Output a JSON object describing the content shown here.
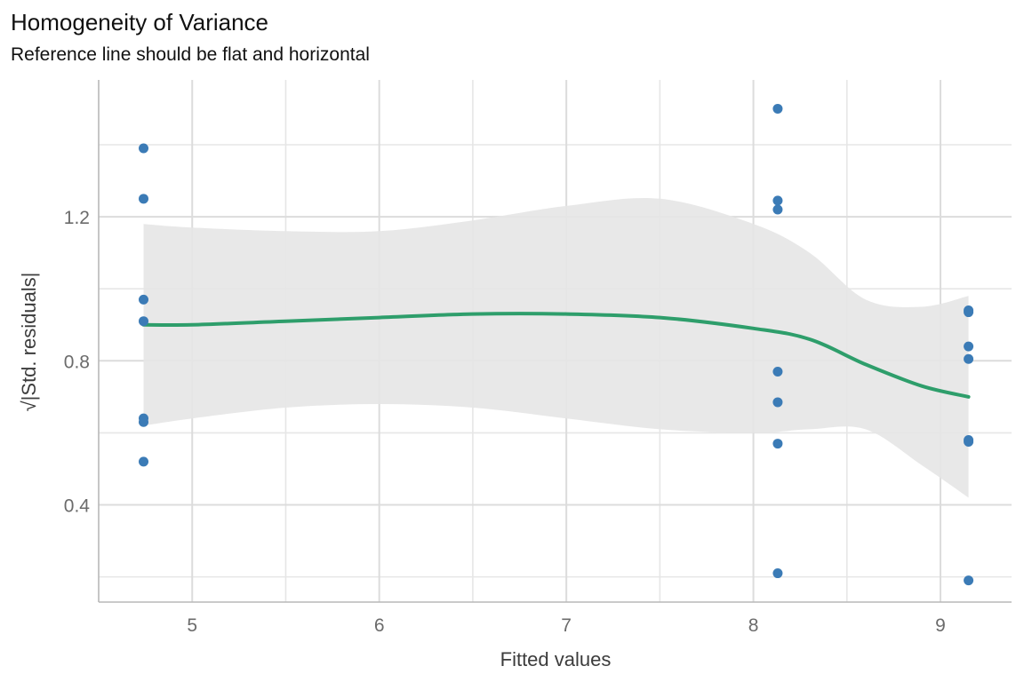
{
  "chart_data": {
    "type": "scatter",
    "title": "Homogeneity of Variance",
    "subtitle": "Reference line should be flat and horizontal",
    "xlabel": "Fitted values",
    "ylabel": "√|Std. residuals|",
    "xlim": [
      4.5,
      9.38
    ],
    "ylim": [
      0.13,
      1.58
    ],
    "x_ticks": [
      5,
      6,
      7,
      8,
      9
    ],
    "x_tick_labels": [
      "5",
      "6",
      "7",
      "8",
      "9"
    ],
    "y_ticks": [
      0.4,
      0.8,
      1.2
    ],
    "y_tick_labels": [
      "0.4",
      "0.8",
      "1.2"
    ],
    "grid": true,
    "series": [
      {
        "kind": "points",
        "color": "#3b7bb6",
        "points": [
          {
            "x": 4.74,
            "y": 1.39
          },
          {
            "x": 4.74,
            "y": 1.25
          },
          {
            "x": 4.74,
            "y": 0.97
          },
          {
            "x": 4.74,
            "y": 0.91
          },
          {
            "x": 4.74,
            "y": 0.64
          },
          {
            "x": 4.74,
            "y": 0.63
          },
          {
            "x": 4.74,
            "y": 0.52
          },
          {
            "x": 8.13,
            "y": 1.5
          },
          {
            "x": 8.13,
            "y": 1.245
          },
          {
            "x": 8.13,
            "y": 1.22
          },
          {
            "x": 8.13,
            "y": 0.77
          },
          {
            "x": 8.13,
            "y": 0.685
          },
          {
            "x": 8.13,
            "y": 0.57
          },
          {
            "x": 8.13,
            "y": 0.21
          },
          {
            "x": 9.15,
            "y": 0.94
          },
          {
            "x": 9.15,
            "y": 0.935
          },
          {
            "x": 9.15,
            "y": 0.84
          },
          {
            "x": 9.15,
            "y": 0.805
          },
          {
            "x": 9.15,
            "y": 0.58
          },
          {
            "x": 9.15,
            "y": 0.575
          },
          {
            "x": 9.15,
            "y": 0.19
          }
        ]
      },
      {
        "kind": "smooth",
        "color": "#2e9e6b",
        "x": [
          4.74,
          5.0,
          5.5,
          6.0,
          6.5,
          7.0,
          7.5,
          8.0,
          8.3,
          8.6,
          8.9,
          9.15
        ],
        "y": [
          0.9,
          0.9,
          0.91,
          0.92,
          0.93,
          0.93,
          0.92,
          0.89,
          0.86,
          0.79,
          0.73,
          0.7
        ]
      },
      {
        "kind": "ribbon",
        "color": "#e5e5e5",
        "x": [
          4.74,
          5.0,
          5.5,
          6.0,
          6.5,
          7.0,
          7.5,
          8.0,
          8.3,
          8.6,
          8.9,
          9.15
        ],
        "upper": [
          1.18,
          1.17,
          1.16,
          1.16,
          1.19,
          1.23,
          1.25,
          1.18,
          1.1,
          0.97,
          0.95,
          0.98
        ],
        "lower": [
          0.62,
          0.64,
          0.67,
          0.68,
          0.67,
          0.64,
          0.61,
          0.6,
          0.61,
          0.61,
          0.51,
          0.42
        ]
      }
    ]
  }
}
